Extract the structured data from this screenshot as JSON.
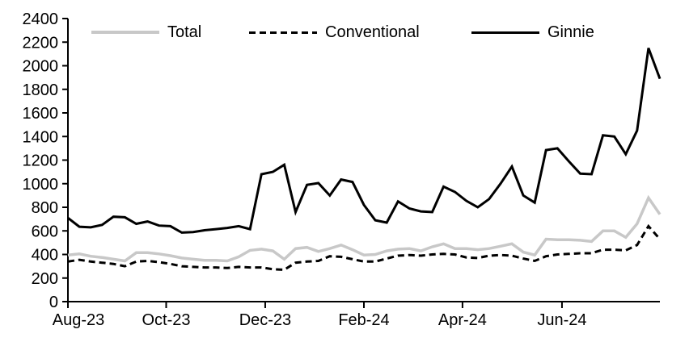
{
  "chart_data": {
    "type": "line",
    "title": "",
    "xlabel": "",
    "ylabel": "",
    "grid": false,
    "legend_position": "top",
    "ylim": [
      0,
      2400
    ],
    "y_tick_step": 200,
    "y_tick_labels": [
      "0",
      "200",
      "400",
      "600",
      "800",
      "1000",
      "1200",
      "1400",
      "1600",
      "1800",
      "2000",
      "2200",
      "2400"
    ],
    "x_tick_labels": [
      "Aug-23",
      "Oct-23",
      "Dec-23",
      "Feb-24",
      "Apr-24",
      "Jun-24"
    ],
    "x_tick_positions_weeks": [
      0,
      8.63,
      17.33,
      26.0,
      34.66,
      43.4
    ],
    "n_points": 53,
    "x_unit": "weekly, Aug-2023 through mid-Aug-2024",
    "axis_color": "#000000",
    "series": [
      {
        "name": "Total",
        "color": "#c8c8c8",
        "dash": "solid",
        "values": [
          395,
          405,
          385,
          375,
          360,
          345,
          415,
          415,
          405,
          390,
          370,
          360,
          350,
          350,
          345,
          380,
          435,
          445,
          430,
          360,
          450,
          460,
          425,
          450,
          480,
          440,
          395,
          400,
          430,
          445,
          450,
          430,
          465,
          490,
          450,
          450,
          440,
          450,
          470,
          490,
          420,
          395,
          530,
          525,
          525,
          520,
          510,
          600,
          600,
          545,
          660,
          880,
          740
        ]
      },
      {
        "name": "Conventional",
        "color": "#000000",
        "dash": "dashed",
        "values": [
          340,
          355,
          340,
          330,
          320,
          300,
          340,
          345,
          335,
          320,
          300,
          295,
          290,
          290,
          285,
          295,
          290,
          290,
          275,
          270,
          330,
          340,
          345,
          385,
          380,
          360,
          340,
          340,
          365,
          390,
          395,
          390,
          400,
          405,
          400,
          375,
          370,
          390,
          395,
          390,
          365,
          345,
          385,
          400,
          405,
          410,
          410,
          440,
          440,
          435,
          480,
          640,
          530
        ]
      },
      {
        "name": "Ginnie",
        "color": "#000000",
        "dash": "solid",
        "values": [
          710,
          635,
          630,
          650,
          720,
          715,
          660,
          680,
          645,
          640,
          585,
          590,
          605,
          615,
          625,
          640,
          615,
          1080,
          1100,
          1160,
          760,
          990,
          1005,
          900,
          1035,
          1015,
          820,
          690,
          670,
          850,
          790,
          765,
          760,
          975,
          930,
          855,
          800,
          870,
          1000,
          1145,
          900,
          840,
          1285,
          1300,
          1190,
          1085,
          1080,
          1410,
          1400,
          1250,
          1450,
          2150,
          1890
        ]
      }
    ]
  },
  "colors": {
    "background": "#ffffff",
    "axis": "#000000",
    "total_line": "#c8c8c8"
  }
}
